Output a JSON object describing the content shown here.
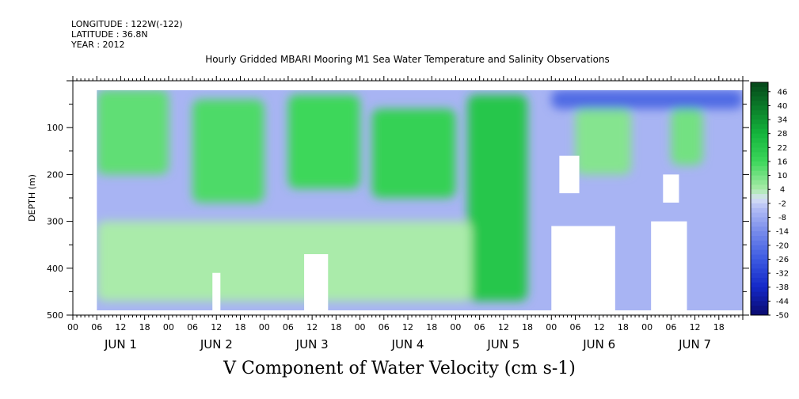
{
  "header": {
    "longitude": "LONGITUDE : 122W(-122)",
    "latitude": "LATITUDE : 36.8N",
    "year": "YEAR : 2012"
  },
  "chart_data": {
    "type": "heatmap",
    "title": "Hourly Gridded MBARI Mooring M1 Sea Water Temperature and Salinity Observations",
    "subtitle": "V Component of Water Velocity (cm s-1)",
    "ylabel": "DEPTH (m)",
    "xlabel": "",
    "ylim": [
      500,
      0
    ],
    "y_ticks": [
      100,
      200,
      300,
      400,
      500
    ],
    "x_range_hours": [
      0,
      168
    ],
    "x_hour_ticks": [
      "00",
      "06",
      "12",
      "18",
      "00",
      "06",
      "12",
      "18",
      "00",
      "06",
      "12",
      "18",
      "00",
      "06",
      "12",
      "18",
      "00",
      "06",
      "12",
      "18",
      "00",
      "06",
      "12",
      "18",
      "00",
      "06",
      "12",
      "18"
    ],
    "day_labels": [
      "JUN  1",
      "JUN  2",
      "JUN  3",
      "JUN  4",
      "JUN  5",
      "JUN  6",
      "JUN  7"
    ],
    "data_depth_range": [
      20,
      490
    ],
    "data_hour_range": [
      6,
      168
    ],
    "colorbar": {
      "labels": [
        46,
        40,
        34,
        28,
        22,
        16,
        10,
        4,
        -2,
        -8,
        -14,
        -20,
        -26,
        -32,
        -38,
        -44,
        -50
      ],
      "range": [
        -50,
        50
      ]
    },
    "bands": [
      {
        "hours": [
          6,
          24
        ],
        "depths": [
          20,
          200
        ],
        "value": 12
      },
      {
        "hours": [
          30,
          48
        ],
        "depths": [
          40,
          260
        ],
        "value": 14
      },
      {
        "hours": [
          54,
          72
        ],
        "depths": [
          30,
          230
        ],
        "value": 16
      },
      {
        "hours": [
          75,
          96
        ],
        "depths": [
          60,
          250
        ],
        "value": 18
      },
      {
        "hours": [
          99,
          114
        ],
        "depths": [
          30,
          470
        ],
        "value": 22
      },
      {
        "hours": [
          126,
          140
        ],
        "depths": [
          60,
          200
        ],
        "value": 8
      },
      {
        "hours": [
          150,
          158
        ],
        "depths": [
          60,
          180
        ],
        "value": 10
      },
      {
        "hours": [
          6,
          100
        ],
        "depths": [
          300,
          470
        ],
        "value": 4
      },
      {
        "hours": [
          120,
          168
        ],
        "depths": [
          20,
          60
        ],
        "value": -22
      }
    ],
    "missing_regions": [
      {
        "hours": [
          35,
          37
        ],
        "depths": [
          410,
          490
        ]
      },
      {
        "hours": [
          58,
          64
        ],
        "depths": [
          370,
          490
        ]
      },
      {
        "hours": [
          120,
          136
        ],
        "depths": [
          310,
          490
        ]
      },
      {
        "hours": [
          122,
          127
        ],
        "depths": [
          160,
          240
        ]
      },
      {
        "hours": [
          145,
          154
        ],
        "depths": [
          300,
          490
        ]
      },
      {
        "hours": [
          148,
          152
        ],
        "depths": [
          200,
          260
        ]
      }
    ]
  }
}
